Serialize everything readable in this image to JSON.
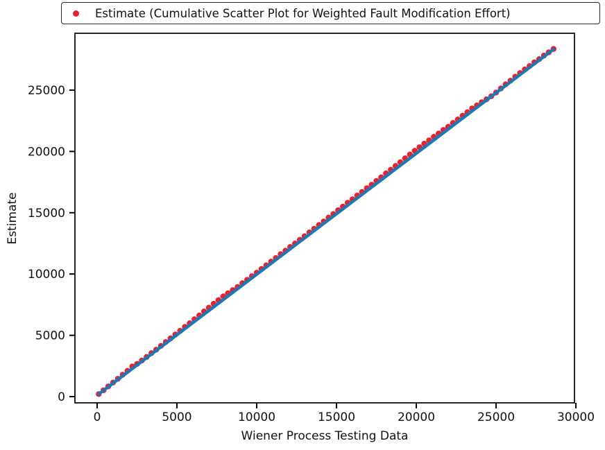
{
  "figure": {
    "background": "#ffffff"
  },
  "legend": {
    "label": "Estimate (Cumulative Scatter Plot for Weighted Fault Modification Effort)",
    "marker": "red-dot-icon",
    "marker_color": "#e8212e"
  },
  "chart_data": {
    "type": "scatter",
    "title": "",
    "xlabel": "Wiener Process Testing Data",
    "ylabel": "Estimate",
    "xlim": [
      -1400,
      30000
    ],
    "ylim": [
      -500,
      29650
    ],
    "x_ticks": [
      0,
      5000,
      10000,
      15000,
      20000,
      25000,
      30000
    ],
    "y_ticks": [
      0,
      5000,
      10000,
      15000,
      20000,
      25000
    ],
    "grid": false,
    "legend_position": "top-outside",
    "colors": {
      "scatter": "#e8212e",
      "line": "#1f77b4",
      "axis": "#000000",
      "text": "#111111"
    },
    "series": [
      {
        "name": "Estimate",
        "type": "scatter",
        "color": "#e8212e",
        "points": [
          [
            100,
            210
          ],
          [
            400,
            515
          ],
          [
            700,
            830
          ],
          [
            1000,
            1150
          ],
          [
            1300,
            1455
          ],
          [
            1600,
            1785
          ],
          [
            1900,
            2105
          ],
          [
            2200,
            2455
          ],
          [
            2500,
            2665
          ],
          [
            2800,
            2945
          ],
          [
            3100,
            3235
          ],
          [
            3400,
            3545
          ],
          [
            3700,
            3830
          ],
          [
            4000,
            4140
          ],
          [
            4300,
            4450
          ],
          [
            4600,
            4750
          ],
          [
            4900,
            5070
          ],
          [
            5200,
            5370
          ],
          [
            5500,
            5690
          ],
          [
            5800,
            5985
          ],
          [
            6100,
            6305
          ],
          [
            6400,
            6615
          ],
          [
            6700,
            6945
          ],
          [
            7000,
            7255
          ],
          [
            7300,
            7575
          ],
          [
            7600,
            7870
          ],
          [
            7900,
            8175
          ],
          [
            8200,
            8425
          ],
          [
            8500,
            8690
          ],
          [
            8800,
            8940
          ],
          [
            9100,
            9245
          ],
          [
            9400,
            9525
          ],
          [
            9700,
            9825
          ],
          [
            10000,
            10105
          ],
          [
            10300,
            10415
          ],
          [
            10600,
            10705
          ],
          [
            10900,
            11015
          ],
          [
            11200,
            11305
          ],
          [
            11500,
            11615
          ],
          [
            11800,
            11900
          ],
          [
            12100,
            12205
          ],
          [
            12400,
            12490
          ],
          [
            12700,
            12795
          ],
          [
            13000,
            13085
          ],
          [
            13300,
            13395
          ],
          [
            13600,
            13685
          ],
          [
            13900,
            14000
          ],
          [
            14200,
            14290
          ],
          [
            14500,
            14605
          ],
          [
            14800,
            14895
          ],
          [
            15100,
            15205
          ],
          [
            15400,
            15495
          ],
          [
            15700,
            15810
          ],
          [
            16000,
            16100
          ],
          [
            16300,
            16405
          ],
          [
            16600,
            16695
          ],
          [
            16900,
            17000
          ],
          [
            17200,
            17285
          ],
          [
            17500,
            17590
          ],
          [
            17800,
            17890
          ],
          [
            18100,
            18205
          ],
          [
            18400,
            18505
          ],
          [
            18700,
            18820
          ],
          [
            19000,
            19120
          ],
          [
            19300,
            19440
          ],
          [
            19600,
            19740
          ],
          [
            19900,
            20060
          ],
          [
            20200,
            20345
          ],
          [
            20500,
            20635
          ],
          [
            20800,
            20905
          ],
          [
            21100,
            21195
          ],
          [
            21400,
            21460
          ],
          [
            21700,
            21750
          ],
          [
            22000,
            22015
          ],
          [
            22300,
            22325
          ],
          [
            22600,
            22610
          ],
          [
            22900,
            22915
          ],
          [
            23200,
            23200
          ],
          [
            23500,
            23505
          ],
          [
            23800,
            23750
          ],
          [
            24100,
            24015
          ],
          [
            24400,
            24255
          ],
          [
            24700,
            24500
          ],
          [
            25000,
            24810
          ],
          [
            25300,
            25135
          ],
          [
            25600,
            25475
          ],
          [
            25900,
            25775
          ],
          [
            26200,
            26095
          ],
          [
            26500,
            26395
          ],
          [
            26800,
            26690
          ],
          [
            27100,
            26970
          ],
          [
            27400,
            27265
          ],
          [
            27700,
            27530
          ],
          [
            28000,
            27820
          ],
          [
            28300,
            28085
          ],
          [
            28600,
            28360
          ]
        ]
      },
      {
        "name": "trend-line",
        "type": "line",
        "color": "#1f77b4",
        "points": [
          [
            100,
            205
          ],
          [
            28600,
            28330
          ]
        ]
      }
    ]
  }
}
